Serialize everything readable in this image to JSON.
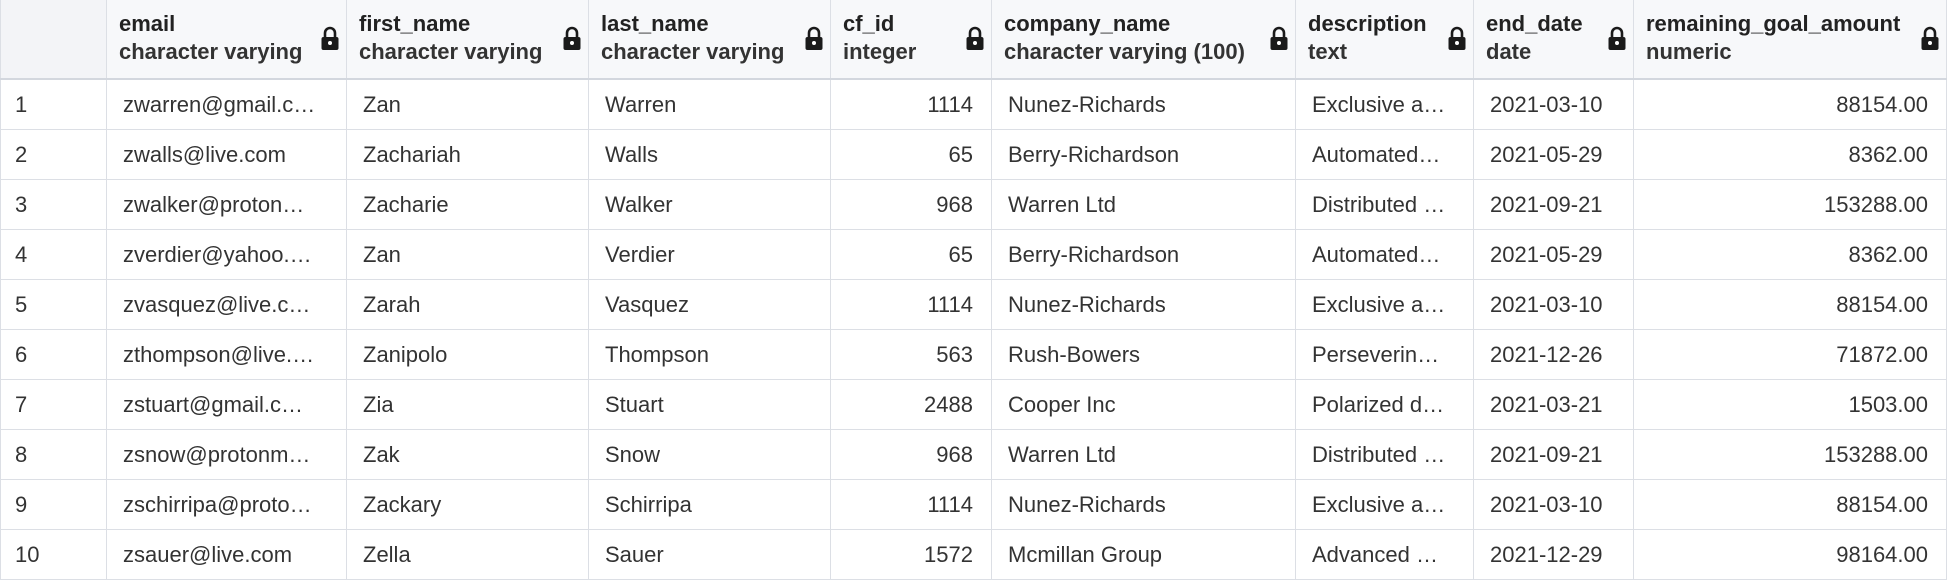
{
  "columns": [
    {
      "name": "email",
      "type": "character varying"
    },
    {
      "name": "first_name",
      "type": "character varying"
    },
    {
      "name": "last_name",
      "type": "character varying"
    },
    {
      "name": "cf_id",
      "type": "integer"
    },
    {
      "name": "company_name",
      "type": "character varying (100)"
    },
    {
      "name": "description",
      "type": "text"
    },
    {
      "name": "end_date",
      "type": "date"
    },
    {
      "name": "remaining_goal_amount",
      "type": "numeric"
    }
  ],
  "rows": [
    {
      "num": "1",
      "email": "zwarren@gmail.c…",
      "first_name": "Zan",
      "last_name": "Warren",
      "cf_id": "1114",
      "company_name": "Nunez-Richards",
      "description": "Exclusive a…",
      "end_date": "2021-03-10",
      "remaining_goal_amount": "88154.00"
    },
    {
      "num": "2",
      "email": "zwalls@live.com",
      "first_name": "Zachariah",
      "last_name": "Walls",
      "cf_id": "65",
      "company_name": "Berry-Richardson",
      "description": "Automated…",
      "end_date": "2021-05-29",
      "remaining_goal_amount": "8362.00"
    },
    {
      "num": "3",
      "email": "zwalker@proton…",
      "first_name": "Zacharie",
      "last_name": "Walker",
      "cf_id": "968",
      "company_name": "Warren Ltd",
      "description": "Distributed …",
      "end_date": "2021-09-21",
      "remaining_goal_amount": "153288.00"
    },
    {
      "num": "4",
      "email": "zverdier@yahoo.…",
      "first_name": "Zan",
      "last_name": "Verdier",
      "cf_id": "65",
      "company_name": "Berry-Richardson",
      "description": "Automated…",
      "end_date": "2021-05-29",
      "remaining_goal_amount": "8362.00"
    },
    {
      "num": "5",
      "email": "zvasquez@live.c…",
      "first_name": "Zarah",
      "last_name": "Vasquez",
      "cf_id": "1114",
      "company_name": "Nunez-Richards",
      "description": "Exclusive a…",
      "end_date": "2021-03-10",
      "remaining_goal_amount": "88154.00"
    },
    {
      "num": "6",
      "email": "zthompson@live.…",
      "first_name": "Zanipolo",
      "last_name": "Thompson",
      "cf_id": "563",
      "company_name": "Rush-Bowers",
      "description": "Perseverin…",
      "end_date": "2021-12-26",
      "remaining_goal_amount": "71872.00"
    },
    {
      "num": "7",
      "email": "zstuart@gmail.c…",
      "first_name": "Zia",
      "last_name": "Stuart",
      "cf_id": "2488",
      "company_name": "Cooper Inc",
      "description": "Polarized d…",
      "end_date": "2021-03-21",
      "remaining_goal_amount": "1503.00"
    },
    {
      "num": "8",
      "email": "zsnow@protonm…",
      "first_name": "Zak",
      "last_name": "Snow",
      "cf_id": "968",
      "company_name": "Warren Ltd",
      "description": "Distributed …",
      "end_date": "2021-09-21",
      "remaining_goal_amount": "153288.00"
    },
    {
      "num": "9",
      "email": "zschirripa@proto…",
      "first_name": "Zackary",
      "last_name": "Schirripa",
      "cf_id": "1114",
      "company_name": "Nunez-Richards",
      "description": "Exclusive a…",
      "end_date": "2021-03-10",
      "remaining_goal_amount": "88154.00"
    },
    {
      "num": "10",
      "email": "zsauer@live.com",
      "first_name": "Zella",
      "last_name": "Sauer",
      "cf_id": "1572",
      "company_name": "Mcmillan Group",
      "description": "Advanced …",
      "end_date": "2021-12-29",
      "remaining_goal_amount": "98164.00"
    }
  ]
}
